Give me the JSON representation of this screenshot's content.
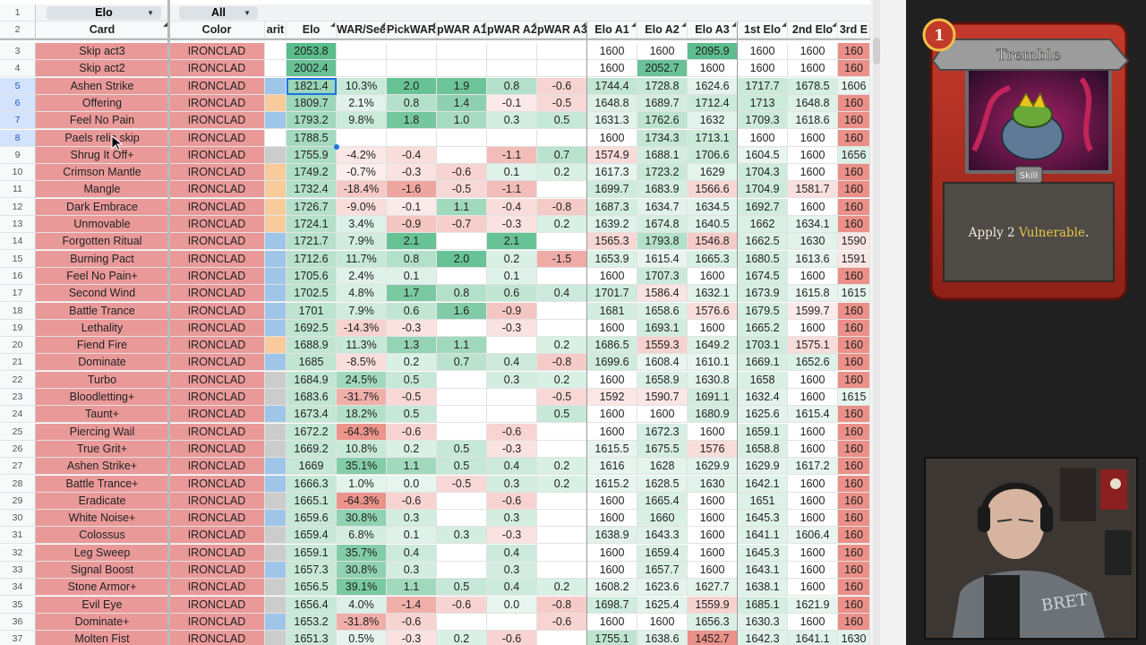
{
  "filters": {
    "a": "Elo",
    "b": "All"
  },
  "headers": {
    "card": "Card",
    "color": "Color",
    "rarity": "arit",
    "elo": "Elo",
    "war": "WAR/Seer",
    "pick": "PickWAR",
    "pa1": "pWAR A1",
    "pa2": "pWAR A2",
    "pa3": "pWAR A3",
    "ea1": "Elo A1",
    "ea2": "Elo A2",
    "ea3": "Elo A3",
    "e1": "1st Elo",
    "e2": "2nd Elo",
    "e3": "3rd E"
  },
  "rows": [
    {
      "n": "3",
      "card": "Skip act3",
      "color": "IRONCLAD",
      "rarity": "",
      "elo": "2053.8",
      "war": "",
      "pick": "",
      "pa1": "",
      "pa2": "",
      "pa3": "",
      "ea1": "1600",
      "ea2": "1600",
      "ea3": "2095.9",
      "e1": "1600",
      "e2": "1600",
      "e3": "160"
    },
    {
      "n": "4",
      "card": "Skip act2",
      "color": "IRONCLAD",
      "rarity": "",
      "elo": "2002.4",
      "war": "",
      "pick": "",
      "pa1": "",
      "pa2": "",
      "pa3": "",
      "ea1": "1600",
      "ea2": "2052.7",
      "ea3": "1600",
      "e1": "1600",
      "e2": "1600",
      "e3": "160"
    },
    {
      "n": "5",
      "card": "Ashen Strike",
      "color": "IRONCLAD",
      "rarity": "blue",
      "elo": "1821.4",
      "war": "10.3%",
      "pick": "2.0",
      "pa1": "1.9",
      "pa2": "0.8",
      "pa3": "-0.6",
      "ea1": "1744.4",
      "ea2": "1728.8",
      "ea3": "1624.6",
      "e1": "1717.7",
      "e2": "1678.5",
      "e3": "1606"
    },
    {
      "n": "6",
      "card": "Offering",
      "color": "IRONCLAD",
      "rarity": "orange",
      "elo": "1809.7",
      "war": "2.1%",
      "pick": "0.8",
      "pa1": "1.4",
      "pa2": "-0.1",
      "pa3": "-0.5",
      "ea1": "1648.8",
      "ea2": "1689.7",
      "ea3": "1712.4",
      "e1": "1713",
      "e2": "1648.8",
      "e3": "160"
    },
    {
      "n": "7",
      "card": "Feel No Pain",
      "color": "IRONCLAD",
      "rarity": "blue",
      "elo": "1793.2",
      "war": "9.8%",
      "pick": "1.8",
      "pa1": "1.0",
      "pa2": "0.3",
      "pa3": "0.5",
      "ea1": "1631.3",
      "ea2": "1762.6",
      "ea3": "1632",
      "e1": "1709.3",
      "e2": "1618.6",
      "e3": "160"
    },
    {
      "n": "8",
      "card": "Paels relic skip",
      "color": "IRONCLAD",
      "rarity": "",
      "elo": "1788.5",
      "war": "",
      "pick": "",
      "pa1": "",
      "pa2": "",
      "pa3": "",
      "ea1": "1600",
      "ea2": "1734.3",
      "ea3": "1713.1",
      "e1": "1600",
      "e2": "1600",
      "e3": "160"
    },
    {
      "n": "9",
      "card": "Shrug It Off+",
      "color": "IRONCLAD",
      "rarity": "grey",
      "elo": "1755.9",
      "war": "-4.2%",
      "pick": "-0.4",
      "pa1": "",
      "pa2": "-1.1",
      "pa3": "0.7",
      "ea1": "1574.9",
      "ea2": "1688.1",
      "ea3": "1706.6",
      "e1": "1604.5",
      "e2": "1600",
      "e3": "1656"
    },
    {
      "n": "10",
      "card": "Crimson Mantle",
      "color": "IRONCLAD",
      "rarity": "orange",
      "elo": "1749.2",
      "war": "-0.7%",
      "pick": "-0.3",
      "pa1": "-0.6",
      "pa2": "0.1",
      "pa3": "0.2",
      "ea1": "1617.3",
      "ea2": "1723.2",
      "ea3": "1629",
      "e1": "1704.3",
      "e2": "1600",
      "e3": "160"
    },
    {
      "n": "11",
      "card": "Mangle",
      "color": "IRONCLAD",
      "rarity": "orange",
      "elo": "1732.4",
      "war": "-18.4%",
      "pick": "-1.6",
      "pa1": "-0.5",
      "pa2": "-1.1",
      "pa3": "",
      "ea1": "1699.7",
      "ea2": "1683.9",
      "ea3": "1566.6",
      "e1": "1704.9",
      "e2": "1581.7",
      "e3": "160"
    },
    {
      "n": "12",
      "card": "Dark Embrace",
      "color": "IRONCLAD",
      "rarity": "orange",
      "elo": "1726.7",
      "war": "-9.0%",
      "pick": "-0.1",
      "pa1": "1.1",
      "pa2": "-0.4",
      "pa3": "-0.8",
      "ea1": "1687.3",
      "ea2": "1634.7",
      "ea3": "1634.5",
      "e1": "1692.7",
      "e2": "1600",
      "e3": "160"
    },
    {
      "n": "13",
      "card": "Unmovable",
      "color": "IRONCLAD",
      "rarity": "orange",
      "elo": "1724.1",
      "war": "3.4%",
      "pick": "-0.9",
      "pa1": "-0.7",
      "pa2": "-0.3",
      "pa3": "0.2",
      "ea1": "1639.2",
      "ea2": "1674.8",
      "ea3": "1640.5",
      "e1": "1662",
      "e2": "1634.1",
      "e3": "160"
    },
    {
      "n": "14",
      "card": "Forgotten Ritual",
      "color": "IRONCLAD",
      "rarity": "blue",
      "elo": "1721.7",
      "war": "7.9%",
      "pick": "2.1",
      "pa1": "",
      "pa2": "2.1",
      "pa3": "",
      "ea1": "1565.3",
      "ea2": "1793.8",
      "ea3": "1546.8",
      "e1": "1662.5",
      "e2": "1630",
      "e3": "1590"
    },
    {
      "n": "15",
      "card": "Burning Pact",
      "color": "IRONCLAD",
      "rarity": "blue",
      "elo": "1712.6",
      "war": "11.7%",
      "pick": "0.8",
      "pa1": "2.0",
      "pa2": "0.2",
      "pa3": "-1.5",
      "ea1": "1653.9",
      "ea2": "1615.4",
      "ea3": "1665.3",
      "e1": "1680.5",
      "e2": "1613.6",
      "e3": "1591"
    },
    {
      "n": "16",
      "card": "Feel No Pain+",
      "color": "IRONCLAD",
      "rarity": "blue",
      "elo": "1705.6",
      "war": "2.4%",
      "pick": "0.1",
      "pa1": "",
      "pa2": "0.1",
      "pa3": "",
      "ea1": "1600",
      "ea2": "1707.3",
      "ea3": "1600",
      "e1": "1674.5",
      "e2": "1600",
      "e3": "160"
    },
    {
      "n": "17",
      "card": "Second Wind",
      "color": "IRONCLAD",
      "rarity": "blue",
      "elo": "1702.5",
      "war": "4.8%",
      "pick": "1.7",
      "pa1": "0.8",
      "pa2": "0.6",
      "pa3": "0.4",
      "ea1": "1701.7",
      "ea2": "1586.4",
      "ea3": "1632.1",
      "e1": "1673.9",
      "e2": "1615.8",
      "e3": "1615"
    },
    {
      "n": "18",
      "card": "Battle Trance",
      "color": "IRONCLAD",
      "rarity": "blue",
      "elo": "1701",
      "war": "7.9%",
      "pick": "0.6",
      "pa1": "1.6",
      "pa2": "-0.9",
      "pa3": "",
      "ea1": "1681",
      "ea2": "1658.6",
      "ea3": "1576.6",
      "e1": "1679.5",
      "e2": "1599.7",
      "e3": "160"
    },
    {
      "n": "19",
      "card": "Lethality",
      "color": "IRONCLAD",
      "rarity": "blue",
      "elo": "1692.5",
      "war": "-14.3%",
      "pick": "-0.3",
      "pa1": "",
      "pa2": "-0.3",
      "pa3": "",
      "ea1": "1600",
      "ea2": "1693.1",
      "ea3": "1600",
      "e1": "1665.2",
      "e2": "1600",
      "e3": "160"
    },
    {
      "n": "20",
      "card": "Fiend Fire",
      "color": "IRONCLAD",
      "rarity": "orange",
      "elo": "1688.9",
      "war": "11.3%",
      "pick": "1.3",
      "pa1": "1.1",
      "pa2": "",
      "pa3": "0.2",
      "ea1": "1686.5",
      "ea2": "1559.3",
      "ea3": "1649.2",
      "e1": "1703.1",
      "e2": "1575.1",
      "e3": "160"
    },
    {
      "n": "21",
      "card": "Dominate",
      "color": "IRONCLAD",
      "rarity": "blue",
      "elo": "1685",
      "war": "-8.5%",
      "pick": "0.2",
      "pa1": "0.7",
      "pa2": "0.4",
      "pa3": "-0.8",
      "ea1": "1699.6",
      "ea2": "1608.4",
      "ea3": "1610.1",
      "e1": "1669.1",
      "e2": "1652.6",
      "e3": "160"
    },
    {
      "n": "22",
      "card": "Turbo",
      "color": "IRONCLAD",
      "rarity": "grey",
      "elo": "1684.9",
      "war": "24.5%",
      "pick": "0.5",
      "pa1": "",
      "pa2": "0.3",
      "pa3": "0.2",
      "ea1": "1600",
      "ea2": "1658.9",
      "ea3": "1630.8",
      "e1": "1658",
      "e2": "1600",
      "e3": "160"
    },
    {
      "n": "23",
      "card": "Bloodletting+",
      "color": "IRONCLAD",
      "rarity": "grey",
      "elo": "1683.6",
      "war": "-31.7%",
      "pick": "-0.5",
      "pa1": "",
      "pa2": "",
      "pa3": "-0.5",
      "ea1": "1592",
      "ea2": "1590.7",
      "ea3": "1691.1",
      "e1": "1632.4",
      "e2": "1600",
      "e3": "1615"
    },
    {
      "n": "24",
      "card": "Taunt+",
      "color": "IRONCLAD",
      "rarity": "blue",
      "elo": "1673.4",
      "war": "18.2%",
      "pick": "0.5",
      "pa1": "",
      "pa2": "",
      "pa3": "0.5",
      "ea1": "1600",
      "ea2": "1600",
      "ea3": "1680.9",
      "e1": "1625.6",
      "e2": "1615.4",
      "e3": "160"
    },
    {
      "n": "25",
      "card": "Piercing Wail",
      "color": "IRONCLAD",
      "rarity": "grey",
      "elo": "1672.2",
      "war": "-64.3%",
      "pick": "-0.6",
      "pa1": "",
      "pa2": "-0.6",
      "pa3": "",
      "ea1": "1600",
      "ea2": "1672.3",
      "ea3": "1600",
      "e1": "1659.1",
      "e2": "1600",
      "e3": "160"
    },
    {
      "n": "26",
      "card": "True Grit+",
      "color": "IRONCLAD",
      "rarity": "grey",
      "elo": "1669.2",
      "war": "10.8%",
      "pick": "0.2",
      "pa1": "0.5",
      "pa2": "-0.3",
      "pa3": "",
      "ea1": "1615.5",
      "ea2": "1675.5",
      "ea3": "1576",
      "e1": "1658.8",
      "e2": "1600",
      "e3": "160"
    },
    {
      "n": "27",
      "card": "Ashen Strike+",
      "color": "IRONCLAD",
      "rarity": "blue",
      "elo": "1669",
      "war": "35.1%",
      "pick": "1.1",
      "pa1": "0.5",
      "pa2": "0.4",
      "pa3": "0.2",
      "ea1": "1616",
      "ea2": "1628",
      "ea3": "1629.9",
      "e1": "1629.9",
      "e2": "1617.2",
      "e3": "160"
    },
    {
      "n": "28",
      "card": "Battle Trance+",
      "color": "IRONCLAD",
      "rarity": "blue",
      "elo": "1666.3",
      "war": "1.0%",
      "pick": "0.0",
      "pa1": "-0.5",
      "pa2": "0.3",
      "pa3": "0.2",
      "ea1": "1615.2",
      "ea2": "1628.5",
      "ea3": "1630",
      "e1": "1642.1",
      "e2": "1600",
      "e3": "160"
    },
    {
      "n": "29",
      "card": "Eradicate",
      "color": "IRONCLAD",
      "rarity": "grey",
      "elo": "1665.1",
      "war": "-64.3%",
      "pick": "-0.6",
      "pa1": "",
      "pa2": "-0.6",
      "pa3": "",
      "ea1": "1600",
      "ea2": "1665.4",
      "ea3": "1600",
      "e1": "1651",
      "e2": "1600",
      "e3": "160"
    },
    {
      "n": "30",
      "card": "White Noise+",
      "color": "IRONCLAD",
      "rarity": "blue",
      "elo": "1659.6",
      "war": "30.8%",
      "pick": "0.3",
      "pa1": "",
      "pa2": "0.3",
      "pa3": "",
      "ea1": "1600",
      "ea2": "1660",
      "ea3": "1600",
      "e1": "1645.3",
      "e2": "1600",
      "e3": "160"
    },
    {
      "n": "31",
      "card": "Colossus",
      "color": "IRONCLAD",
      "rarity": "grey",
      "elo": "1659.4",
      "war": "6.8%",
      "pick": "0.1",
      "pa1": "0.3",
      "pa2": "-0.3",
      "pa3": "",
      "ea1": "1638.9",
      "ea2": "1643.3",
      "ea3": "1600",
      "e1": "1641.1",
      "e2": "1606.4",
      "e3": "160"
    },
    {
      "n": "32",
      "card": "Leg Sweep",
      "color": "IRONCLAD",
      "rarity": "grey",
      "elo": "1659.1",
      "war": "35.7%",
      "pick": "0.4",
      "pa1": "",
      "pa2": "0.4",
      "pa3": "",
      "ea1": "1600",
      "ea2": "1659.4",
      "ea3": "1600",
      "e1": "1645.3",
      "e2": "1600",
      "e3": "160"
    },
    {
      "n": "33",
      "card": "Signal Boost",
      "color": "IRONCLAD",
      "rarity": "blue",
      "elo": "1657.3",
      "war": "30.8%",
      "pick": "0.3",
      "pa1": "",
      "pa2": "0.3",
      "pa3": "",
      "ea1": "1600",
      "ea2": "1657.7",
      "ea3": "1600",
      "e1": "1643.1",
      "e2": "1600",
      "e3": "160"
    },
    {
      "n": "34",
      "card": "Stone Armor+",
      "color": "IRONCLAD",
      "rarity": "grey",
      "elo": "1656.5",
      "war": "39.1%",
      "pick": "1.1",
      "pa1": "0.5",
      "pa2": "0.4",
      "pa3": "0.2",
      "ea1": "1608.2",
      "ea2": "1623.6",
      "ea3": "1627.7",
      "e1": "1638.1",
      "e2": "1600",
      "e3": "160"
    },
    {
      "n": "35",
      "card": "Evil Eye",
      "color": "IRONCLAD",
      "rarity": "grey",
      "elo": "1656.4",
      "war": "4.0%",
      "pick": "-1.4",
      "pa1": "-0.6",
      "pa2": "0.0",
      "pa3": "-0.8",
      "ea1": "1698.7",
      "ea2": "1625.4",
      "ea3": "1559.9",
      "e1": "1685.1",
      "e2": "1621.9",
      "e3": "160"
    },
    {
      "n": "36",
      "card": "Dominate+",
      "color": "IRONCLAD",
      "rarity": "blue",
      "elo": "1653.2",
      "war": "-31.8%",
      "pick": "-0.6",
      "pa1": "",
      "pa2": "",
      "pa3": "-0.6",
      "ea1": "1600",
      "ea2": "1600",
      "ea3": "1656.3",
      "e1": "1630.3",
      "e2": "1600",
      "e3": "160"
    },
    {
      "n": "37",
      "card": "Molten Fist",
      "color": "IRONCLAD",
      "rarity": "grey",
      "elo": "1651.3",
      "war": "0.5%",
      "pick": "-0.3",
      "pa1": "0.2",
      "pa2": "-0.6",
      "pa3": "",
      "ea1": "1755.1",
      "ea2": "1638.6",
      "ea3": "1452.7",
      "e1": "1642.3",
      "e2": "1641.1",
      "e3": "1630"
    }
  ],
  "game_card": {
    "cost": "1",
    "name": "Tremble",
    "type": "Skill",
    "desc_pre": "Apply 2 ",
    "desc_kw": "Vulnerable",
    "desc_post": "."
  },
  "webcam": {
    "shirt_text": "BRET"
  }
}
